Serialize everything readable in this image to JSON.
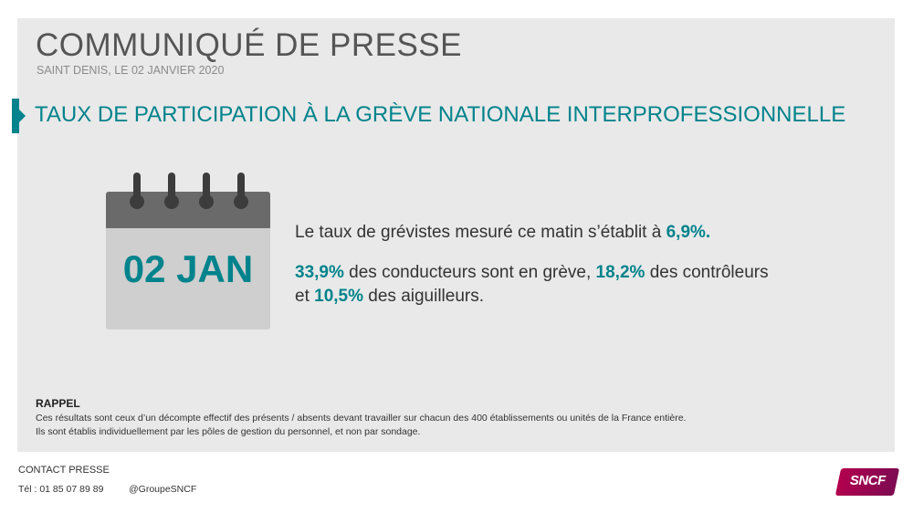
{
  "header": {
    "title": "COMMUNIQUÉ DE PRESSE",
    "location_date": "SAINT DENIS, LE 02 JANVIER 2020"
  },
  "section": {
    "title": "TAUX DE PARTICIPATION À LA GRÈVE NATIONALE INTERPROFESSIONNELLE"
  },
  "calendar": {
    "date": "02 JAN"
  },
  "stats": {
    "line1_text": "Le taux de grévistes mesuré ce matin s’établit à ",
    "line1_value": "6,9%",
    "line1_end": ".",
    "drivers_value": "33,9%",
    "drivers_text": " des conducteurs sont en grève, ",
    "controllers_value": "18,2%",
    "controllers_text": " des contrôleurs",
    "and_text": "et ",
    "switchmen_value": "10,5%",
    "switchmen_text": " des aiguilleurs."
  },
  "rappel": {
    "title": "RAPPEL",
    "line1": "Ces résultats sont ceux d’un décompte effectif des présents / absents devant travailler sur chacun des 400 établissements ou unités de la France entière.",
    "line2": "Ils sont établis individuellement par les pôles de gestion du personnel, et non par sondage."
  },
  "contact": {
    "title": "CONTACT PRESSE",
    "phone": "Tél : 01 85 07 89 89",
    "handle": "@GroupeSNCF"
  },
  "logo": {
    "text": "SNCF"
  },
  "colors": {
    "accent": "#00838c",
    "panel": "#e9e9e9",
    "brand": "#b2004e"
  }
}
